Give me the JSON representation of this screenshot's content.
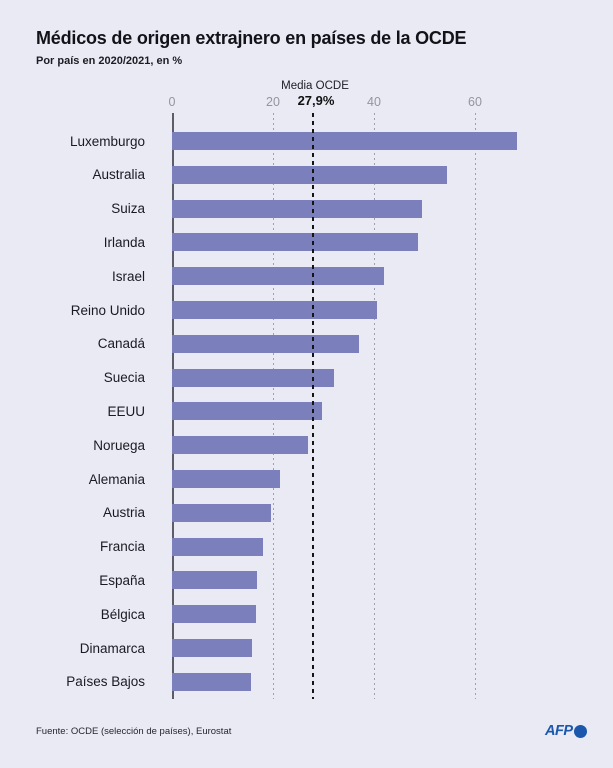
{
  "header": {
    "title": "Médicos de origen extrajnero en países de la OCDE",
    "subtitle": "Por país en 2020/2021, en %"
  },
  "chart_data": {
    "type": "bar",
    "orientation": "horizontal",
    "title": "Médicos de origen extrajnero en países de la OCDE",
    "subtitle": "Por país en 2020/2021, en %",
    "unit": "%",
    "categories": [
      "Luxemburgo",
      "Australia",
      "Suiza",
      "Irlanda",
      "Israel",
      "Reino Unido",
      "Canadá",
      "Suecia",
      "EEUU",
      "Noruega",
      "Alemania",
      "Austria",
      "Francia",
      "España",
      "Bélgica",
      "Dinamarca",
      "Países Bajos"
    ],
    "values": [
      68.3,
      54.4,
      49.5,
      48.8,
      42.0,
      40.5,
      37.0,
      32.0,
      29.8,
      26.9,
      21.4,
      19.6,
      18.0,
      16.9,
      16.7,
      15.8,
      15.7
    ],
    "xlim": [
      0,
      70
    ],
    "xticks": [
      0,
      20,
      40,
      60
    ],
    "grid": "vertical-dotted",
    "legend": "none",
    "mean_line": {
      "label": "Media OCDE",
      "value_label": "27,9%",
      "value": 27.9
    },
    "bar_color": "#7b80bd",
    "background_color": "#e9eaf4"
  },
  "footer": {
    "source": "Fuente: OCDE (selección de países), Eurostat",
    "brand": "AFP",
    "brand_color": "#1b57ad"
  }
}
